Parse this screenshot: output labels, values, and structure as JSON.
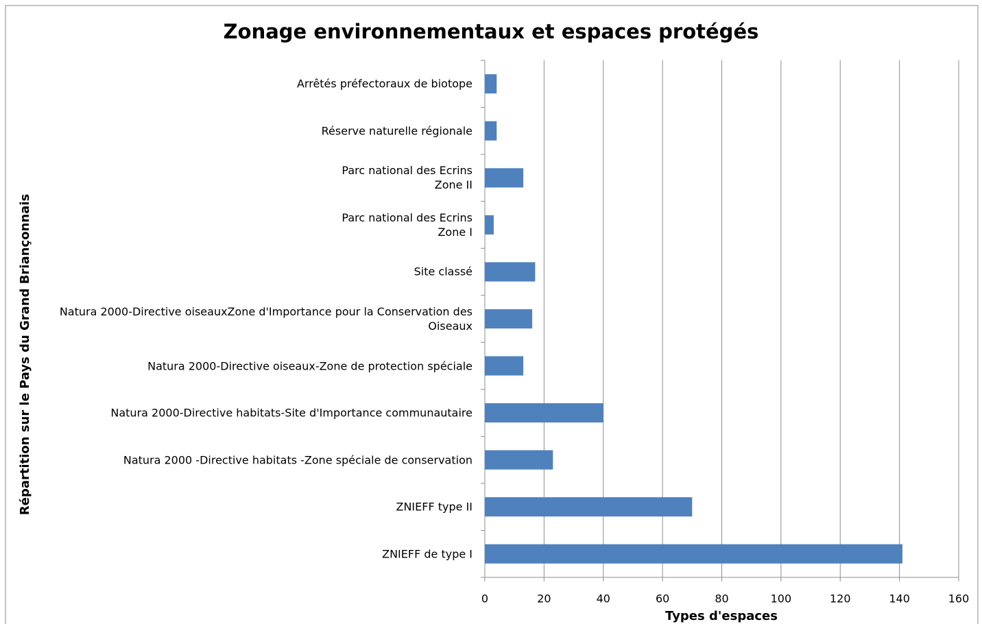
{
  "chart_data": {
    "type": "hbar",
    "title": "Zonage environnementaux et espaces protégés",
    "x_label": "Types d'espaces",
    "y_label": "Répartition sur le Pays du Grand Briançonnais",
    "categories": [
      "Arrêtés préfectoraux de biotope",
      "Réserve naturelle régionale",
      "Parc national des Ecrins\nZone II",
      "Parc national des Ecrins\nZone I",
      "Site classé",
      "Natura 2000-Directive oiseauxZone d'Importance pour la Conservation des Oiseaux",
      "Natura 2000-Directive oiseaux-Zone de protection spéciale",
      "Natura 2000-Directive habitats-Site d'Importance communautaire",
      "Natura 2000 -Directive habitats -Zone spéciale de conservation",
      "ZNIEFF type II",
      "ZNIEFF de  type I"
    ],
    "values": [
      4,
      4,
      13,
      3,
      17,
      16,
      13,
      40,
      23,
      70,
      141
    ],
    "color": "#4f81bd",
    "xlim": [
      0,
      160
    ],
    "xticks": [
      0,
      20,
      40,
      60,
      80,
      100,
      120,
      140,
      160
    ],
    "grid": true
  }
}
